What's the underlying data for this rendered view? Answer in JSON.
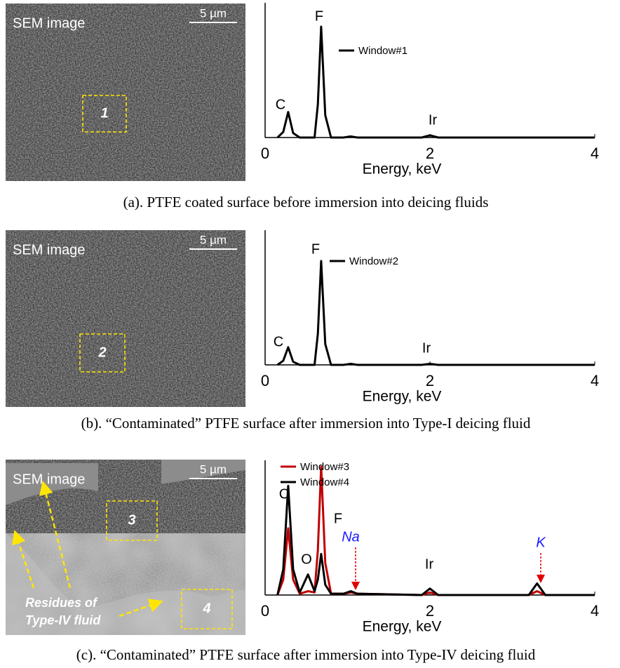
{
  "chart_data": [
    {
      "type": "line",
      "xlabel": "Energy, keV",
      "xlim": [
        0,
        4
      ],
      "xticks": [
        0,
        2,
        4
      ],
      "ylim": [
        0,
        100
      ],
      "x": [
        0.15,
        0.22,
        0.28,
        0.34,
        0.42,
        0.52,
        0.6,
        0.64,
        0.68,
        0.73,
        0.8,
        0.95,
        1.04,
        1.12,
        1.9,
        2.0,
        2.1,
        3.2,
        3.3,
        3.4,
        4.0
      ],
      "series": [
        {
          "name": "Window#1",
          "color": "#000000",
          "values": [
            0,
            5,
            23,
            4,
            0,
            0,
            0,
            30,
            100,
            20,
            0,
            0,
            1,
            0,
            0,
            2,
            0,
            0,
            0,
            0,
            0
          ]
        }
      ],
      "annotations": [
        {
          "text": "C",
          "color": "#000000"
        },
        {
          "text": "F",
          "color": "#000000"
        },
        {
          "text": "Ir",
          "color": "#000000"
        }
      ]
    },
    {
      "type": "line",
      "xlabel": "Energy, keV",
      "xlim": [
        0,
        4
      ],
      "xticks": [
        0,
        2,
        4
      ],
      "ylim": [
        0,
        100
      ],
      "x": [
        0.15,
        0.22,
        0.28,
        0.34,
        0.42,
        0.52,
        0.6,
        0.64,
        0.68,
        0.73,
        0.8,
        0.95,
        1.04,
        1.12,
        1.9,
        2.0,
        2.1,
        3.2,
        3.3,
        3.4,
        4.0
      ],
      "series": [
        {
          "name": "Window#2",
          "color": "#000000",
          "values": [
            0,
            4,
            17,
            3,
            0,
            0,
            0,
            30,
            100,
            20,
            0,
            0,
            1,
            0,
            0,
            1,
            0,
            0,
            0,
            0,
            0
          ]
        }
      ],
      "annotations": [
        {
          "text": "C",
          "color": "#000000"
        },
        {
          "text": "F",
          "color": "#000000"
        },
        {
          "text": "Ir",
          "color": "#000000"
        }
      ]
    },
    {
      "type": "line",
      "xlabel": "Energy, keV",
      "xlim": [
        0,
        4
      ],
      "xticks": [
        0,
        2,
        4
      ],
      "ylim": [
        0,
        100
      ],
      "x": [
        0.15,
        0.22,
        0.28,
        0.34,
        0.42,
        0.52,
        0.6,
        0.64,
        0.68,
        0.73,
        0.8,
        0.95,
        1.04,
        1.12,
        1.9,
        2.0,
        2.1,
        3.2,
        3.3,
        3.4,
        4.0
      ],
      "series": [
        {
          "name": "Window#3",
          "color": "#c00000",
          "values": [
            0,
            12,
            52,
            12,
            1,
            3,
            2,
            35,
            100,
            25,
            1,
            1,
            2,
            1,
            0,
            2,
            0,
            0,
            3,
            0,
            0
          ]
        },
        {
          "name": "Window#4",
          "color": "#000000",
          "values": [
            0,
            20,
            85,
            20,
            2,
            16,
            3,
            12,
            32,
            8,
            1,
            1,
            3,
            1,
            0,
            5,
            0,
            0,
            9,
            0,
            0
          ]
        }
      ],
      "annotations": [
        {
          "text": "C",
          "color": "#000000"
        },
        {
          "text": "O",
          "color": "#000000"
        },
        {
          "text": "F",
          "color": "#000000"
        },
        {
          "text": "Na",
          "color": "#1a1aff"
        },
        {
          "text": "Ir",
          "color": "#000000"
        },
        {
          "text": "K",
          "color": "#1a1aff"
        }
      ]
    }
  ],
  "images": [
    {
      "label": "SEM image",
      "scale_bar": "5 µm",
      "windows": [
        "1"
      ]
    },
    {
      "label": "SEM image",
      "scale_bar": "5 µm",
      "windows": [
        "2"
      ]
    },
    {
      "label": "SEM image",
      "scale_bar": "5 µm",
      "windows": [
        "3",
        "4"
      ],
      "note": [
        "Residues of",
        "Type-IV fluid"
      ]
    }
  ],
  "captions": [
    "(a). PTFE coated surface before immersion into deicing fluids",
    "(b). “Contaminated” PTFE surface after immersion into Type-I deicing fluid",
    "(c). “Contaminated” PTFE surface after immersion into Type-IV deicing fluid"
  ]
}
